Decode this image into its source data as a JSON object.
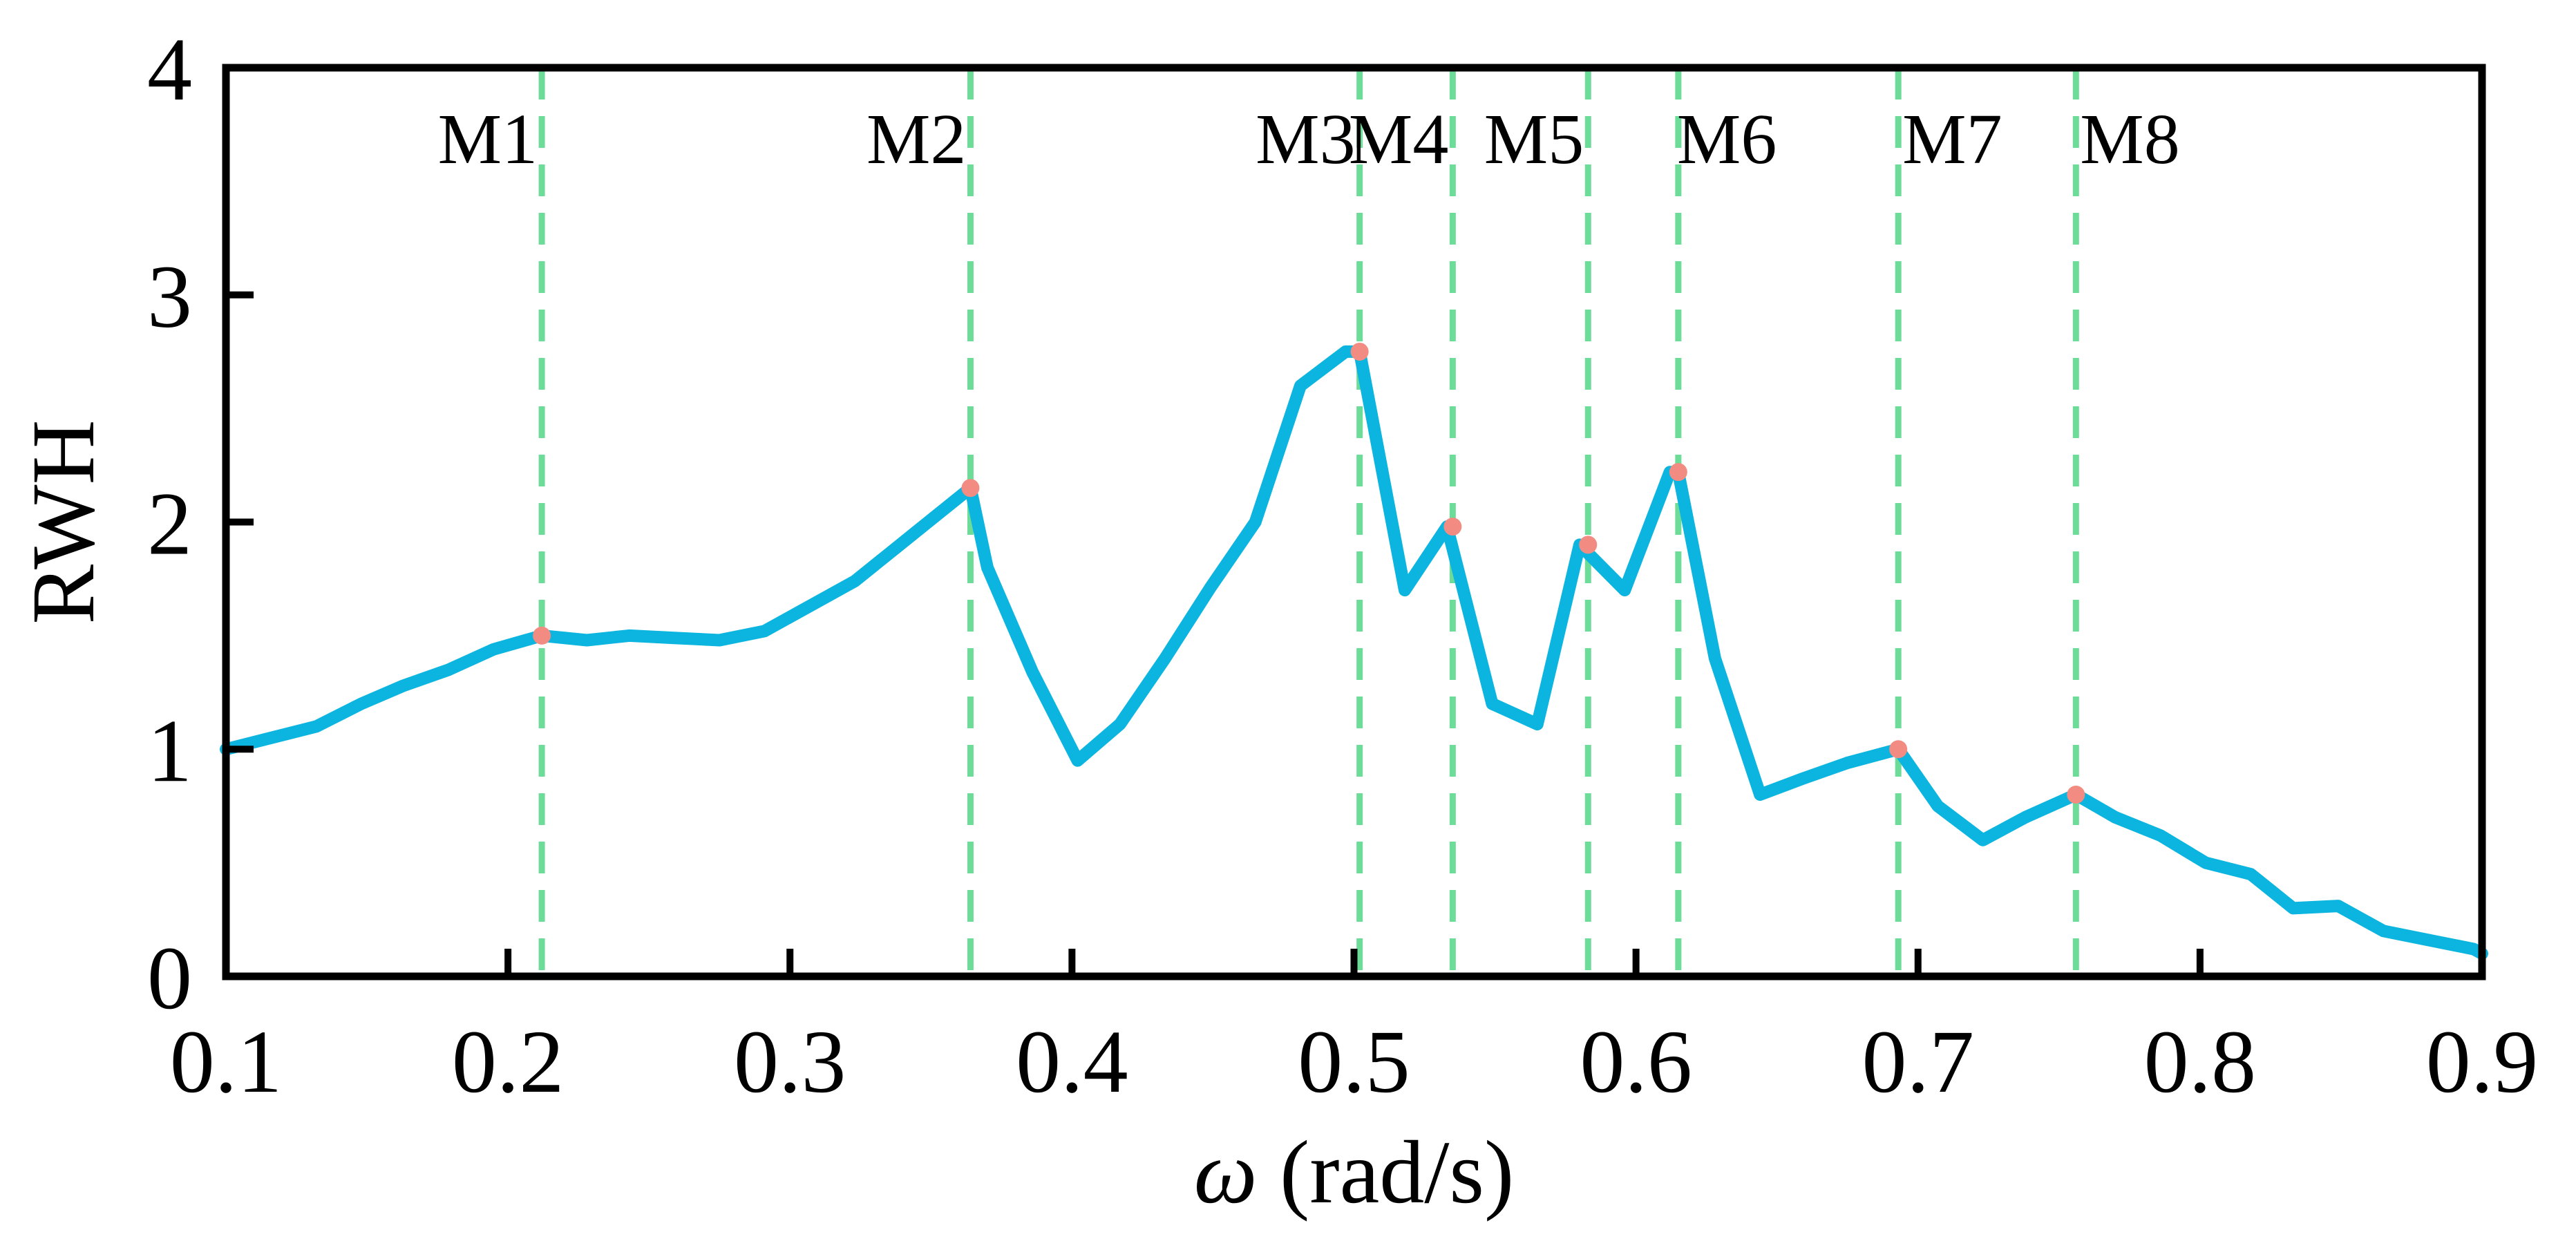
{
  "chart_data": {
    "type": "line",
    "xlabel_symbol": "ω",
    "xlabel_unit": " (rad/s)",
    "ylabel": "RWH",
    "xlim": [
      0.1,
      0.9
    ],
    "ylim": [
      0,
      4
    ],
    "xticks": [
      0.1,
      0.2,
      0.3,
      0.4,
      0.5,
      0.6,
      0.7,
      0.8,
      0.9
    ],
    "xtick_labels": [
      "0.1",
      "0.2",
      "0.3",
      "0.4",
      "0.5",
      "0.6",
      "0.7",
      "0.8",
      "0.9"
    ],
    "yticks": [
      0,
      1,
      2,
      3,
      4
    ],
    "ytick_labels": [
      "0",
      "1",
      "2",
      "3",
      "4"
    ],
    "grid": false,
    "colors": {
      "line": "#0BB5DF",
      "marker": "#F28C82",
      "vline": "#6DDC98",
      "axes": "#000000"
    },
    "series": [
      {
        "name": "RWH",
        "x": [
          0.1,
          0.132,
          0.148,
          0.163,
          0.179,
          0.195,
          0.212,
          0.228,
          0.243,
          0.259,
          0.275,
          0.291,
          0.307,
          0.323,
          0.338,
          0.354,
          0.364,
          0.37,
          0.386,
          0.402,
          0.417,
          0.433,
          0.449,
          0.465,
          0.481,
          0.497,
          0.502,
          0.518,
          0.533,
          0.549,
          0.565,
          0.58,
          0.596,
          0.612,
          0.615,
          0.628,
          0.644,
          0.659,
          0.675,
          0.693,
          0.707,
          0.723,
          0.738,
          0.756,
          0.77,
          0.786,
          0.802,
          0.818,
          0.833,
          0.849,
          0.865,
          0.881,
          0.897,
          0.9
        ],
        "y": [
          1.0,
          1.1,
          1.2,
          1.28,
          1.35,
          1.44,
          1.5,
          1.48,
          1.5,
          1.49,
          1.48,
          1.52,
          1.63,
          1.74,
          1.89,
          2.05,
          2.15,
          1.8,
          1.34,
          0.95,
          1.11,
          1.4,
          1.71,
          2.0,
          2.6,
          2.75,
          2.75,
          1.7,
          1.98,
          1.2,
          1.11,
          1.9,
          1.7,
          2.22,
          2.22,
          1.4,
          0.8,
          0.87,
          0.94,
          1.0,
          0.75,
          0.6,
          0.7,
          0.8,
          0.7,
          0.62,
          0.5,
          0.45,
          0.3,
          0.31,
          0.2,
          0.16,
          0.12,
          0.1
        ]
      }
    ],
    "highlight_points": {
      "x": [
        0.212,
        0.364,
        0.502,
        0.535,
        0.583,
        0.615,
        0.693,
        0.756
      ],
      "y": [
        1.5,
        2.15,
        2.75,
        1.98,
        1.9,
        2.22,
        1.0,
        0.8
      ]
    },
    "mode_markers": [
      {
        "label": "M1",
        "x": 0.212
      },
      {
        "label": "M2",
        "x": 0.364
      },
      {
        "label": "M3",
        "x": 0.502
      },
      {
        "label": "M4",
        "x": 0.535
      },
      {
        "label": "M5",
        "x": 0.583
      },
      {
        "label": "M6",
        "x": 0.615
      },
      {
        "label": "M7",
        "x": 0.693
      },
      {
        "label": "M8",
        "x": 0.756
      }
    ]
  }
}
